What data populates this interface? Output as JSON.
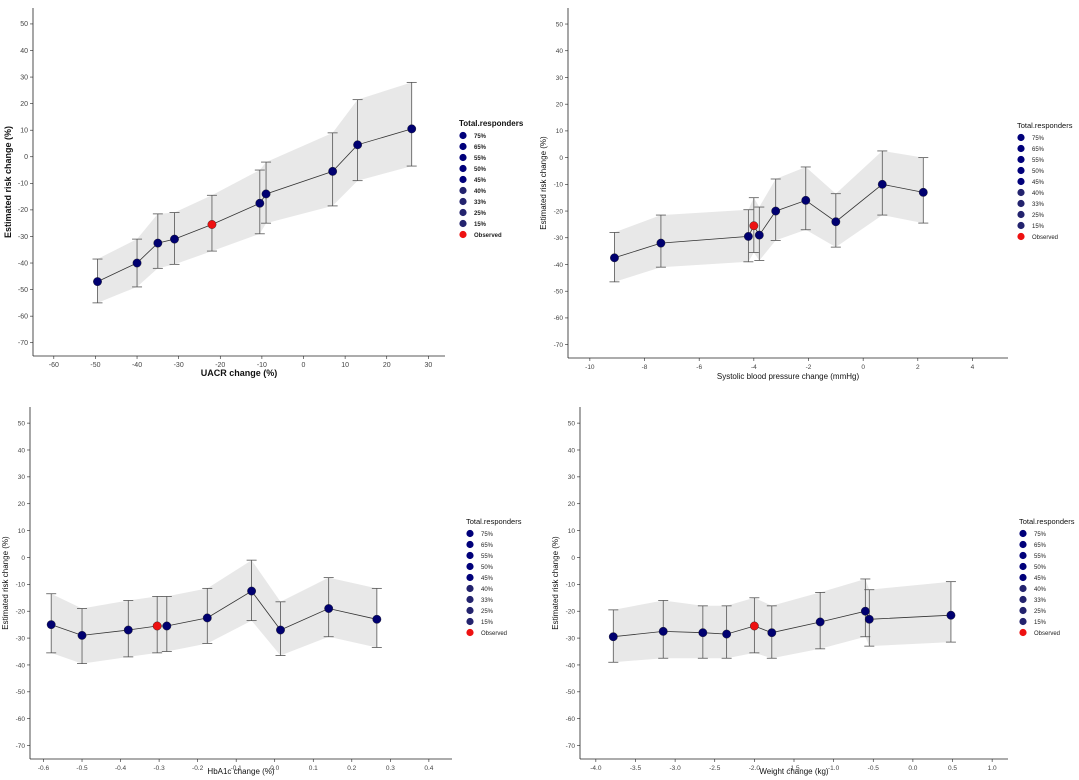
{
  "colors": {
    "point": "#000070",
    "observed": "#ee1111",
    "band": "#e8e8e8",
    "line": "#333333",
    "axis": "#222222",
    "tick_label": "#444444",
    "legend_15_33": "#23236e",
    "legend_40_75": "#00007a"
  },
  "chart_data": [
    {
      "type": "line",
      "panel": "uacr",
      "xlabel": "UACR change (%)",
      "ylabel": "Estimated risk change (%)",
      "xlim": [
        -65,
        34
      ],
      "ylim": [
        -75,
        56
      ],
      "xticks": [
        -60,
        -50,
        -40,
        -30,
        -20,
        -10,
        0,
        10,
        20,
        30
      ],
      "yticks": [
        50,
        40,
        30,
        20,
        10,
        0,
        -10,
        -20,
        -30,
        -40,
        -50,
        -60,
        -70
      ],
      "legend": {
        "title": "Total.responders",
        "items": [
          "75%",
          "65%",
          "55%",
          "50%",
          "45%",
          "40%",
          "33%",
          "25%",
          "15%",
          "Observed"
        ]
      },
      "points": [
        {
          "x": -49.5,
          "y": -47,
          "lo": -55,
          "hi": -38.5
        },
        {
          "x": -40,
          "y": -40,
          "lo": -49,
          "hi": -31
        },
        {
          "x": -35,
          "y": -32.5,
          "lo": -42,
          "hi": -21.5
        },
        {
          "x": -31,
          "y": -31,
          "lo": -40.5,
          "hi": -21
        },
        {
          "x": -22,
          "y": -25.5,
          "lo": -35.5,
          "hi": -14.5,
          "observed": true
        },
        {
          "x": -10.5,
          "y": -17.5,
          "lo": -29,
          "hi": -5
        },
        {
          "x": -9,
          "y": -14,
          "lo": -25,
          "hi": -2
        },
        {
          "x": 7,
          "y": -5.5,
          "lo": -18.5,
          "hi": 9
        },
        {
          "x": 13,
          "y": 4.5,
          "lo": -9,
          "hi": 21.5
        },
        {
          "x": 26,
          "y": 10.5,
          "lo": -3.5,
          "hi": 28
        }
      ]
    },
    {
      "type": "line",
      "panel": "sbp",
      "xlabel": "Systolic blood pressure change (mmHg)",
      "ylabel": "Estimated risk change (%)",
      "xlim": [
        -10.8,
        5.3
      ],
      "ylim": [
        -75,
        56
      ],
      "xticks": [
        -10,
        -8,
        -6,
        -4,
        -2,
        0,
        2,
        4
      ],
      "yticks": [
        50,
        40,
        30,
        20,
        10,
        0,
        -10,
        -20,
        -30,
        -40,
        -50,
        -60,
        -70
      ],
      "legend": {
        "title": "Total.responders",
        "items": [
          "75%",
          "65%",
          "55%",
          "50%",
          "45%",
          "40%",
          "33%",
          "25%",
          "15%",
          "Observed"
        ]
      },
      "points": [
        {
          "x": -9.1,
          "y": -37.5,
          "lo": -46.5,
          "hi": -28
        },
        {
          "x": -7.4,
          "y": -32,
          "lo": -41,
          "hi": -21.5
        },
        {
          "x": -4.2,
          "y": -29.5,
          "lo": -39,
          "hi": -19.5
        },
        {
          "x": -4.0,
          "y": -25.5,
          "lo": -35.5,
          "hi": -15,
          "observed": true
        },
        {
          "x": -3.8,
          "y": -29,
          "lo": -38.5,
          "hi": -18.5
        },
        {
          "x": -3.2,
          "y": -20,
          "lo": -31,
          "hi": -8
        },
        {
          "x": -2.1,
          "y": -16,
          "lo": -27,
          "hi": -3.5
        },
        {
          "x": -1.0,
          "y": -24,
          "lo": -33.5,
          "hi": -13.5
        },
        {
          "x": 0.7,
          "y": -10,
          "lo": -21.5,
          "hi": 2.5
        },
        {
          "x": 2.2,
          "y": -13,
          "lo": -24.5,
          "hi": 0
        }
      ]
    },
    {
      "type": "line",
      "panel": "hba1c",
      "xlabel": "HbA1c change (%)",
      "ylabel": "Estimated risk change (%)",
      "xlim": [
        -0.635,
        0.46
      ],
      "ylim": [
        -75,
        56
      ],
      "xticks": [
        -0.6,
        -0.5,
        -0.4,
        -0.3,
        -0.2,
        -0.1,
        0.0,
        0.1,
        0.2,
        0.3,
        0.4
      ],
      "yticks": [
        50,
        40,
        30,
        20,
        10,
        0,
        -10,
        -20,
        -30,
        -40,
        -50,
        -60,
        -70
      ],
      "legend": {
        "title": "Total.responders",
        "items": [
          "75%",
          "65%",
          "55%",
          "50%",
          "45%",
          "40%",
          "33%",
          "25%",
          "15%",
          "Observed"
        ]
      },
      "points": [
        {
          "x": -0.58,
          "y": -25,
          "lo": -35.5,
          "hi": -13.5
        },
        {
          "x": -0.5,
          "y": -29,
          "lo": -39.5,
          "hi": -19
        },
        {
          "x": -0.38,
          "y": -27,
          "lo": -37,
          "hi": -16
        },
        {
          "x": -0.305,
          "y": -25.5,
          "lo": -35.5,
          "hi": -14.5,
          "observed": true
        },
        {
          "x": -0.28,
          "y": -25.5,
          "lo": -35,
          "hi": -14.5
        },
        {
          "x": -0.175,
          "y": -22.5,
          "lo": -32,
          "hi": -11.5
        },
        {
          "x": -0.06,
          "y": -12.5,
          "lo": -23.5,
          "hi": -1
        },
        {
          "x": 0.015,
          "y": -27,
          "lo": -36.5,
          "hi": -16.5
        },
        {
          "x": 0.14,
          "y": -19,
          "lo": -29.5,
          "hi": -7.5
        },
        {
          "x": 0.265,
          "y": -23,
          "lo": -33.5,
          "hi": -11.5
        }
      ]
    },
    {
      "type": "line",
      "panel": "weight",
      "xlabel": "Weight change (kg)",
      "ylabel": "Estimated risk change (%)",
      "xlim": [
        -4.2,
        1.2
      ],
      "ylim": [
        -75,
        56
      ],
      "xticks": [
        -4.0,
        -3.5,
        -3.0,
        -2.5,
        -2.0,
        -1.5,
        -1.0,
        -0.5,
        0.0,
        0.5,
        1.0
      ],
      "yticks": [
        50,
        40,
        30,
        20,
        10,
        0,
        -10,
        -20,
        -30,
        -40,
        -50,
        -60,
        -70
      ],
      "legend": {
        "title": "Total.responders",
        "items": [
          "75%",
          "65%",
          "55%",
          "50%",
          "45%",
          "40%",
          "33%",
          "25%",
          "15%",
          "Observed"
        ]
      },
      "points": [
        {
          "x": -3.78,
          "y": -29.5,
          "lo": -39,
          "hi": -19.5
        },
        {
          "x": -3.15,
          "y": -27.5,
          "lo": -37.5,
          "hi": -16
        },
        {
          "x": -2.65,
          "y": -28,
          "lo": -37.5,
          "hi": -18
        },
        {
          "x": -2.35,
          "y": -28.5,
          "lo": -37.5,
          "hi": -18
        },
        {
          "x": -2.0,
          "y": -25.5,
          "lo": -35.5,
          "hi": -15,
          "observed": true
        },
        {
          "x": -1.78,
          "y": -28,
          "lo": -37.5,
          "hi": -18
        },
        {
          "x": -1.17,
          "y": -24,
          "lo": -34,
          "hi": -13
        },
        {
          "x": -0.6,
          "y": -20,
          "lo": -29.5,
          "hi": -8
        },
        {
          "x": -0.55,
          "y": -23,
          "lo": -33,
          "hi": -12
        },
        {
          "x": 0.48,
          "y": -21.5,
          "lo": -31.5,
          "hi": -9
        }
      ]
    }
  ]
}
